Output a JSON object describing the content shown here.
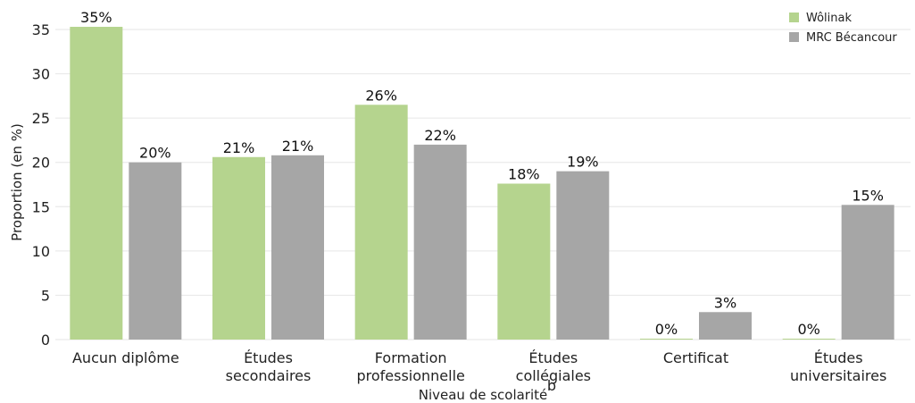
{
  "chart_data": {
    "type": "bar",
    "title": "",
    "xlabel": "Niveau de scolarité",
    "ylabel": "Proportion (en %)",
    "ylim": [
      0,
      35
    ],
    "yticks": [
      0,
      5,
      10,
      15,
      20,
      25,
      30,
      35
    ],
    "grid": true,
    "legend_position": "top-right",
    "categories": [
      [
        "Aucun diplôme"
      ],
      [
        "Études",
        "secondaires"
      ],
      [
        "Formation",
        "professionnelle"
      ],
      [
        "Études",
        "collégiales"
      ],
      [
        "Certificat"
      ],
      [
        "Études",
        "universitaires"
      ]
    ],
    "series": [
      {
        "name": "Wôlinak",
        "color": "#b5d48e",
        "values": [
          35.3,
          20.6,
          26.5,
          17.6,
          0.1,
          0.1
        ],
        "labels": [
          "35%",
          "21%",
          "26%",
          "18%",
          "0%",
          "0%"
        ]
      },
      {
        "name": "MRC Bécancour",
        "color": "#a6a6a6",
        "values": [
          20.0,
          20.8,
          22.0,
          19.0,
          3.1,
          15.2
        ],
        "labels": [
          "20%",
          "21%",
          "22%",
          "19%",
          "3%",
          "15%"
        ]
      }
    ],
    "stray_text": "b"
  }
}
